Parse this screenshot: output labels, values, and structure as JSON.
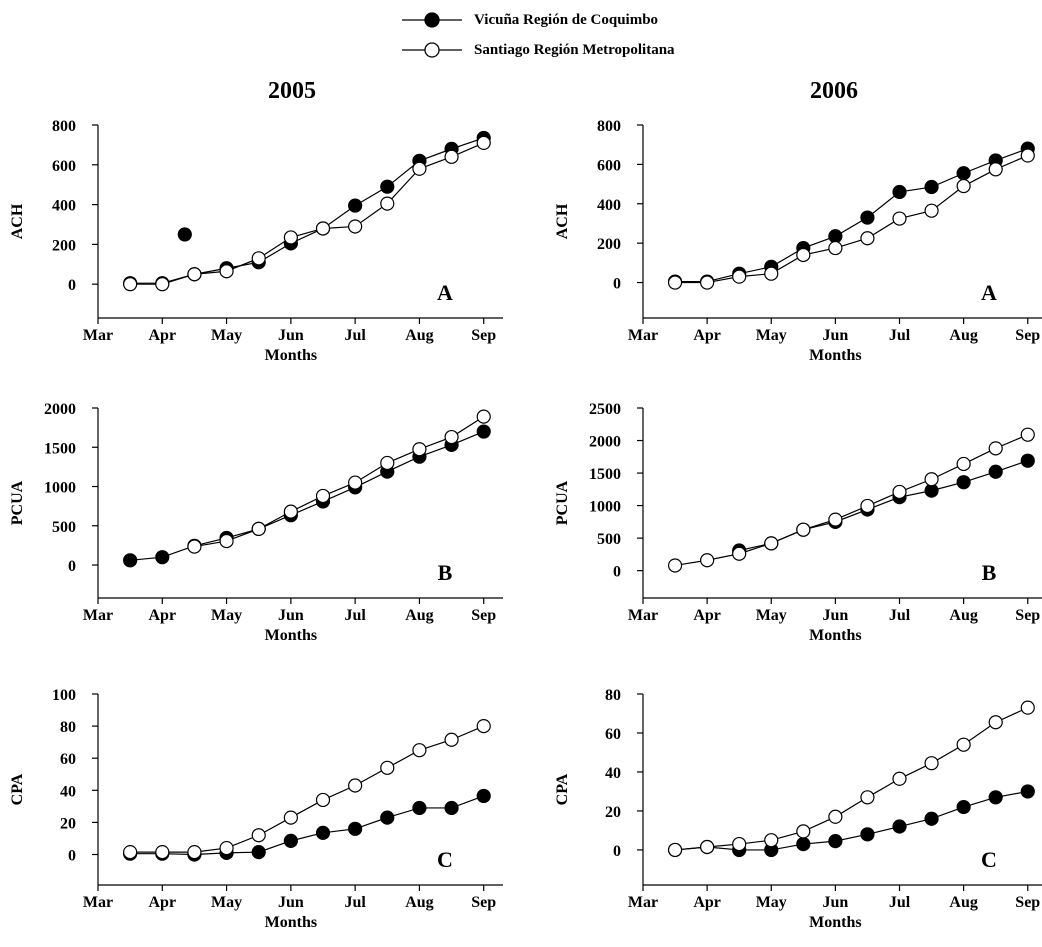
{
  "legend": [
    {
      "label": "Vicuña Región de Coquimbo",
      "marker": "filled-circle"
    },
    {
      "label": "Santiago Región Metropolitana",
      "marker": "open-circle"
    }
  ],
  "columns": [
    {
      "year": "2005"
    },
    {
      "year": "2006"
    }
  ],
  "chart_data": [
    {
      "type": "line",
      "column": 0,
      "row": 0,
      "panel_label": "A",
      "ylabel": "ACH",
      "xlabel": "Months",
      "xcategories": [
        "Mar",
        "Apr",
        "May",
        "Jun",
        "Jul",
        "Aug",
        "Sep"
      ],
      "xlim": [
        0,
        6.3
      ],
      "ylim": [
        -170,
        800
      ],
      "yticks": [
        0,
        200,
        400,
        600,
        800
      ],
      "series": [
        {
          "name": "Vicuña Región de Coquimbo",
          "fill": "filled",
          "points": [
            [
              0.5,
              5
            ],
            [
              1,
              5
            ],
            [
              1.5,
              50
            ],
            [
              2,
              80
            ],
            [
              2.5,
              110
            ],
            [
              3,
              205
            ],
            [
              3.5,
              280
            ],
            [
              4,
              395
            ],
            [
              4.5,
              490
            ],
            [
              5,
              620
            ],
            [
              5.5,
              680
            ],
            [
              6,
              735
            ]
          ]
        },
        {
          "name": "Santiago Región Metropolitana",
          "fill": "open",
          "points": [
            [
              0.5,
              0
            ],
            [
              1,
              0
            ],
            [
              1.5,
              50
            ],
            [
              2,
              65
            ],
            [
              2.5,
              130
            ],
            [
              3,
              235
            ],
            [
              3.5,
              280
            ],
            [
              4,
              290
            ],
            [
              4.5,
              405
            ],
            [
              5,
              580
            ],
            [
              5.5,
              640
            ],
            [
              6,
              710
            ]
          ]
        }
      ],
      "extra_points": [
        {
          "x": 1.35,
          "y": 250,
          "fill": "filled"
        }
      ]
    },
    {
      "type": "line",
      "column": 1,
      "row": 0,
      "panel_label": "A",
      "ylabel": "ACH",
      "xlabel": "Months",
      "xcategories": [
        "Mar",
        "Apr",
        "May",
        "Jun",
        "Jul",
        "Aug",
        "Sep"
      ],
      "xlim": [
        0,
        6.3
      ],
      "ylim": [
        -180,
        800
      ],
      "yticks": [
        0,
        200,
        400,
        600,
        800
      ],
      "series": [
        {
          "name": "Vicuña Región de Coquimbo",
          "fill": "filled",
          "points": [
            [
              0.5,
              5
            ],
            [
              1,
              5
            ],
            [
              1.5,
              45
            ],
            [
              2,
              80
            ],
            [
              2.5,
              175
            ],
            [
              3,
              235
            ],
            [
              3.5,
              330
            ],
            [
              4,
              460
            ],
            [
              4.5,
              485
            ],
            [
              5,
              555
            ],
            [
              5.5,
              620
            ],
            [
              6,
              680
            ]
          ]
        },
        {
          "name": "Santiago Región Metropolitana",
          "fill": "open",
          "points": [
            [
              0.5,
              0
            ],
            [
              1,
              0
            ],
            [
              1.5,
              30
            ],
            [
              2,
              45
            ],
            [
              2.5,
              140
            ],
            [
              3,
              175
            ],
            [
              3.5,
              225
            ],
            [
              4,
              325
            ],
            [
              4.5,
              365
            ],
            [
              5,
              490
            ],
            [
              5.5,
              575
            ],
            [
              6,
              645
            ]
          ]
        }
      ],
      "extra_points": []
    },
    {
      "type": "line",
      "column": 0,
      "row": 1,
      "panel_label": "B",
      "ylabel": "PCUA",
      "xlabel": "Months",
      "xcategories": [
        "Mar",
        "Apr",
        "May",
        "Jun",
        "Jul",
        "Aug",
        "Sep"
      ],
      "xlim": [
        0,
        6.3
      ],
      "ylim": [
        -420,
        2000
      ],
      "yticks": [
        0,
        500,
        1000,
        1500,
        2000
      ],
      "series": [
        {
          "name": "Vicuña Región de Coquimbo",
          "fill": "filled",
          "points": [
            [
              0.5,
              60
            ],
            [
              1,
              100
            ],
            [
              1.5,
              245
            ],
            [
              2,
              345
            ],
            [
              2.5,
              460
            ],
            [
              3,
              635
            ],
            [
              3.5,
              810
            ],
            [
              4,
              990
            ],
            [
              4.5,
              1190
            ],
            [
              5,
              1380
            ],
            [
              5.5,
              1530
            ],
            [
              6,
              1700
            ]
          ]
        },
        {
          "name": "Santiago Región Metropolitana",
          "fill": "open",
          "points": [
            [
              1.5,
              235
            ],
            [
              2,
              305
            ],
            [
              2.5,
              460
            ],
            [
              3,
              680
            ],
            [
              3.5,
              880
            ],
            [
              4,
              1050
            ],
            [
              4.5,
              1300
            ],
            [
              5,
              1475
            ],
            [
              5.5,
              1630
            ],
            [
              6,
              1890
            ]
          ]
        }
      ],
      "extra_points": []
    },
    {
      "type": "line",
      "column": 1,
      "row": 1,
      "panel_label": "B",
      "ylabel": "PCUA",
      "xlabel": "Months",
      "xcategories": [
        "Mar",
        "Apr",
        "May",
        "Jun",
        "Jul",
        "Aug",
        "Sep"
      ],
      "xlim": [
        0,
        6.3
      ],
      "ylim": [
        -420,
        2500
      ],
      "yticks": [
        0,
        500,
        1000,
        1500,
        2000,
        2500
      ],
      "series": [
        {
          "name": "Vicuña Región de Coquimbo",
          "fill": "filled",
          "points": [
            [
              1.5,
              310
            ],
            [
              2,
              420
            ],
            [
              2.5,
              630
            ],
            [
              3,
              750
            ],
            [
              3.5,
              940
            ],
            [
              4,
              1130
            ],
            [
              4.5,
              1230
            ],
            [
              5,
              1360
            ],
            [
              5.5,
              1520
            ],
            [
              6,
              1690
            ]
          ]
        },
        {
          "name": "Santiago Región Metropolitana",
          "fill": "open",
          "points": [
            [
              0.5,
              80
            ],
            [
              1,
              160
            ],
            [
              1.5,
              260
            ],
            [
              2,
              420
            ],
            [
              2.5,
              630
            ],
            [
              3,
              785
            ],
            [
              3.5,
              995
            ],
            [
              4,
              1210
            ],
            [
              4.5,
              1405
            ],
            [
              5,
              1640
            ],
            [
              5.5,
              1880
            ],
            [
              6,
              2090
            ]
          ]
        }
      ],
      "extra_points": []
    },
    {
      "type": "line",
      "column": 0,
      "row": 2,
      "panel_label": "C",
      "ylabel": "CPA",
      "xlabel": "Months",
      "xcategories": [
        "Mar",
        "Apr",
        "May",
        "Jun",
        "Jul",
        "Aug",
        "Sep"
      ],
      "xlim": [
        0,
        6.3
      ],
      "ylim": [
        -19,
        100
      ],
      "yticks": [
        0,
        20,
        40,
        60,
        80,
        100
      ],
      "series": [
        {
          "name": "Vicuña Región de Coquimbo",
          "fill": "filled",
          "points": [
            [
              0.5,
              0.5
            ],
            [
              1,
              0.5
            ],
            [
              1.5,
              0
            ],
            [
              2,
              1
            ],
            [
              2.5,
              1.5
            ],
            [
              3,
              8.5
            ],
            [
              3.5,
              13.5
            ],
            [
              4,
              16
            ],
            [
              4.5,
              23
            ],
            [
              5,
              29
            ],
            [
              5.5,
              29
            ],
            [
              6,
              36.5
            ]
          ]
        },
        {
          "name": "Santiago Región Metropolitana",
          "fill": "open",
          "points": [
            [
              0.5,
              1.5
            ],
            [
              1,
              1.5
            ],
            [
              1.5,
              1.5
            ],
            [
              2,
              4
            ],
            [
              2.5,
              12
            ],
            [
              3,
              23
            ],
            [
              3.5,
              34
            ],
            [
              4,
              43
            ],
            [
              4.5,
              54
            ],
            [
              5,
              65
            ],
            [
              5.5,
              71.5
            ],
            [
              6,
              80
            ]
          ]
        }
      ],
      "extra_points": []
    },
    {
      "type": "line",
      "column": 1,
      "row": 2,
      "panel_label": "C",
      "ylabel": "CPA",
      "xlabel": "Months",
      "xcategories": [
        "Mar",
        "Apr",
        "May",
        "Jun",
        "Jul",
        "Aug",
        "Sep"
      ],
      "xlim": [
        0,
        6.3
      ],
      "ylim": [
        -18,
        80
      ],
      "yticks": [
        0,
        20,
        40,
        60,
        80
      ],
      "series": [
        {
          "name": "Vicuña Región de Coquimbo",
          "fill": "filled",
          "points": [
            [
              0.5,
              0
            ],
            [
              1,
              1.5
            ],
            [
              1.5,
              0
            ],
            [
              2,
              0
            ],
            [
              2.5,
              3
            ],
            [
              3,
              4.5
            ],
            [
              3.5,
              8
            ],
            [
              4,
              12
            ],
            [
              4.5,
              16
            ],
            [
              5,
              22
            ],
            [
              5.5,
              27
            ],
            [
              6,
              30
            ]
          ]
        },
        {
          "name": "Santiago Región Metropolitana",
          "fill": "open",
          "points": [
            [
              0.5,
              0
            ],
            [
              1,
              1.5
            ],
            [
              1.5,
              3
            ],
            [
              2,
              5
            ],
            [
              2.5,
              9.5
            ],
            [
              3,
              17
            ],
            [
              3.5,
              27
            ],
            [
              4,
              36.5
            ],
            [
              4.5,
              44.5
            ],
            [
              5,
              54
            ],
            [
              5.5,
              65.5
            ],
            [
              6,
              73
            ]
          ]
        }
      ],
      "extra_points": []
    }
  ]
}
